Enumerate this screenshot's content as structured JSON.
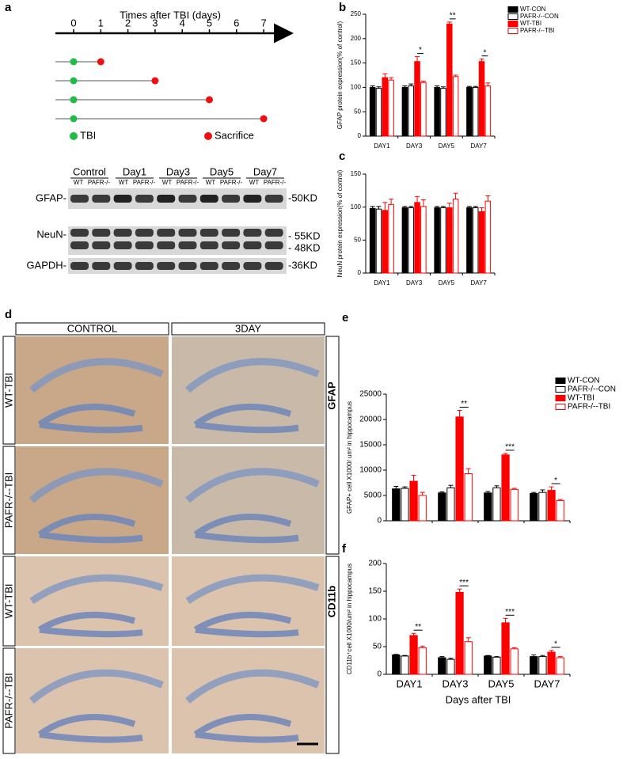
{
  "panel_labels": [
    "a",
    "b",
    "c",
    "d",
    "e",
    "f"
  ],
  "timeline": {
    "title": "Times after TBI (days)",
    "ticks": [
      0,
      1,
      2,
      3,
      4,
      5,
      6,
      7
    ],
    "sacrifice_days": [
      1,
      3,
      5,
      7
    ],
    "legend": [
      "TBI",
      "Sacrifice"
    ]
  },
  "blot": {
    "groups": [
      "Control",
      "Day1",
      "Day3",
      "Day5",
      "Day7"
    ],
    "lanes": [
      "WT",
      "PAFR-/-"
    ],
    "proteins": [
      "GFAP-",
      "NeuN-",
      "GAPDH-"
    ],
    "sizes": [
      "-50KD",
      "- 55KD",
      "- 48KD",
      "-36KD"
    ]
  },
  "histology": {
    "columns": [
      "CONTROL",
      "3DAY"
    ],
    "rows": [
      "WT-TBI",
      "PAFR-/--TBI",
      "WT-TBI",
      "PAFR-/--TBI"
    ],
    "markers": [
      "GFAP",
      "CD11b"
    ]
  },
  "chart_data": [
    {
      "type": "bar",
      "ylabel": "GFAP protein expression(% of control)",
      "categories": [
        "DAY1",
        "DAY3",
        "DAY5",
        "DAY7"
      ],
      "series": [
        {
          "name": "WT-CON",
          "color": "#000000",
          "hollow": false,
          "values": [
            100,
            100,
            100,
            100
          ],
          "errors": [
            3,
            3,
            3,
            2
          ]
        },
        {
          "name": "PAFR-/--CON",
          "color": "#000000",
          "hollow": true,
          "values": [
            98,
            103,
            98,
            100
          ],
          "errors": [
            3,
            4,
            3,
            2
          ]
        },
        {
          "name": "WT-TBI",
          "color": "#ff0000",
          "hollow": false,
          "values": [
            120,
            153,
            230,
            153
          ],
          "errors": [
            8,
            10,
            4,
            5
          ]
        },
        {
          "name": "PAFR-/--TBI",
          "color": "#ff0000",
          "hollow": true,
          "values": [
            115,
            110,
            122,
            103
          ],
          "errors": [
            5,
            3,
            3,
            6
          ]
        }
      ],
      "ylim": [
        0,
        250
      ],
      "yticks": [
        0,
        50,
        100,
        150,
        200,
        250
      ],
      "significance": [
        null,
        "*",
        "**",
        "*"
      ],
      "legend": true
    },
    {
      "type": "bar",
      "ylabel": "NeuN protein expression(% of control)",
      "categories": [
        "DAY1",
        "DAY3",
        "DAY5",
        "DAY7"
      ],
      "series": [
        {
          "name": "WT-CON",
          "color": "#000000",
          "hollow": false,
          "values": [
            98,
            99,
            99,
            99
          ],
          "errors": [
            3,
            2,
            2,
            2
          ]
        },
        {
          "name": "PAFR-/--CON",
          "color": "#000000",
          "hollow": true,
          "values": [
            97,
            99,
            99,
            99
          ],
          "errors": [
            4,
            2,
            2,
            2
          ]
        },
        {
          "name": "WT-TBI",
          "color": "#ff0000",
          "hollow": false,
          "values": [
            95,
            107,
            99,
            93
          ],
          "errors": [
            12,
            9,
            7,
            6
          ]
        },
        {
          "name": "PAFR-/--TBI",
          "color": "#ff0000",
          "hollow": true,
          "values": [
            104,
            101,
            112,
            109
          ],
          "errors": [
            8,
            10,
            9,
            8
          ]
        }
      ],
      "ylim": [
        0,
        150
      ],
      "yticks": [
        0,
        50,
        100,
        150
      ],
      "significance": [
        null,
        null,
        null,
        null
      ],
      "legend": false
    },
    {
      "type": "bar",
      "ylabel": "GFAP+ cell X1000/ um² in hippocampus",
      "categories": [
        null,
        null,
        null,
        null
      ],
      "series": [
        {
          "name": "WT-CON",
          "color": "#000000",
          "hollow": false,
          "values": [
            6300,
            5500,
            5500,
            5400
          ],
          "errors": [
            500,
            200,
            300,
            200
          ]
        },
        {
          "name": "PAFR-/--CON",
          "color": "#000000",
          "hollow": true,
          "values": [
            6400,
            6500,
            6500,
            5600
          ],
          "errors": [
            300,
            500,
            400,
            500
          ]
        },
        {
          "name": "WT-TBI",
          "color": "#ff0000",
          "hollow": false,
          "values": [
            7800,
            20500,
            13000,
            6000
          ],
          "errors": [
            1200,
            1300,
            300,
            700
          ]
        },
        {
          "name": "PAFR-/--TBI",
          "color": "#ff0000",
          "hollow": true,
          "values": [
            5000,
            9300,
            6200,
            4000
          ],
          "errors": [
            600,
            1000,
            200,
            200
          ]
        }
      ],
      "ylim": [
        0,
        25000
      ],
      "yticks": [
        0,
        5000,
        10000,
        15000,
        20000,
        25000
      ],
      "significance": [
        null,
        "**",
        "***",
        "*"
      ],
      "legend": true
    },
    {
      "type": "bar",
      "ylabel": "CD11b⁺cell X1000/um² in hippocampus",
      "xlabel": "Days after TBI",
      "categories": [
        "DAY1",
        "DAY3",
        "DAY5",
        "DAY7"
      ],
      "series": [
        {
          "name": "WT-CON",
          "color": "#000000",
          "hollow": false,
          "values": [
            35,
            30,
            33,
            32
          ],
          "errors": [
            1,
            2,
            1,
            3
          ]
        },
        {
          "name": "PAFR-/--CON",
          "color": "#000000",
          "hollow": true,
          "values": [
            33,
            27,
            31,
            32
          ],
          "errors": [
            1,
            2,
            1,
            2
          ]
        },
        {
          "name": "WT-TBI",
          "color": "#ff0000",
          "hollow": false,
          "values": [
            70,
            148,
            93,
            40
          ],
          "errors": [
            4,
            6,
            8,
            3
          ]
        },
        {
          "name": "PAFR-/--TBI",
          "color": "#ff0000",
          "hollow": true,
          "values": [
            48,
            59,
            46,
            30
          ],
          "errors": [
            3,
            7,
            2,
            2
          ]
        }
      ],
      "ylim": [
        0,
        200
      ],
      "yticks": [
        0,
        50,
        100,
        150,
        200
      ],
      "significance": [
        "**",
        "***",
        "***",
        "*"
      ],
      "legend": false
    }
  ]
}
